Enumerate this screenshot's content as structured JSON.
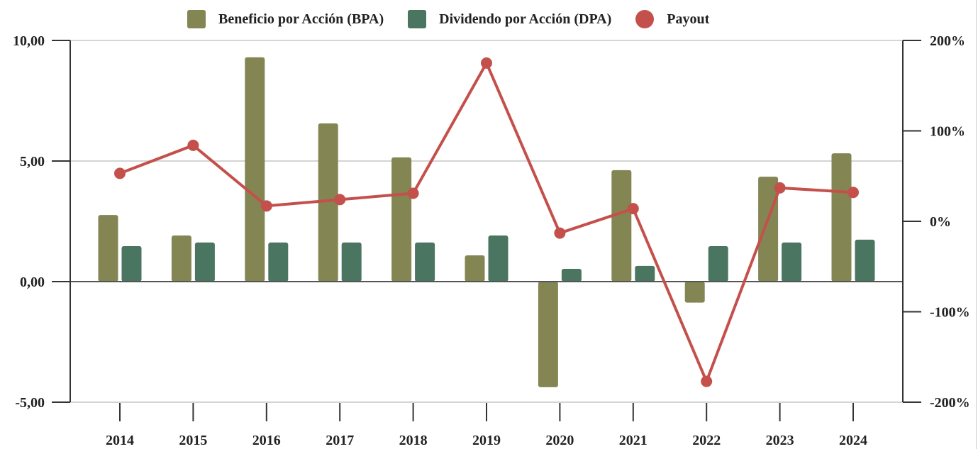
{
  "chart_data": {
    "type": "bar",
    "title": "",
    "xlabel": "",
    "ylabel": "",
    "y2label": "",
    "categories": [
      "2014",
      "2015",
      "2016",
      "2017",
      "2018",
      "2019",
      "2020",
      "2021",
      "2022",
      "2023",
      "2024"
    ],
    "series": [
      {
        "name": "Beneficio por Acción (BPA)",
        "type": "bar",
        "axis": "left",
        "color": "#838653",
        "values": [
          2.76,
          1.91,
          9.3,
          6.56,
          5.15,
          1.09,
          -4.38,
          4.62,
          -0.87,
          4.35,
          5.32
        ]
      },
      {
        "name": "Dividendo por Acción (DPA)",
        "type": "bar",
        "axis": "left",
        "color": "#4a7560",
        "values": [
          1.47,
          1.62,
          1.62,
          1.62,
          1.62,
          1.91,
          0.53,
          0.65,
          1.47,
          1.62,
          1.74
        ]
      },
      {
        "name": "Payout",
        "type": "line",
        "axis": "right",
        "unit": "%",
        "color": "#c4504c",
        "values": [
          53,
          84,
          17,
          24,
          31,
          175,
          -13,
          14,
          -177,
          37,
          32
        ]
      }
    ],
    "ylim": [
      -5,
      10
    ],
    "yticks": [
      10,
      5,
      0,
      -5
    ],
    "ytick_labels": [
      "10,00",
      "5,00",
      "0,00",
      "-5,00"
    ],
    "y2lim": [
      -200,
      200
    ],
    "y2ticks": [
      200,
      100,
      0,
      -100,
      -200
    ],
    "y2tick_labels": [
      "200%",
      "100%",
      "0%",
      "-100%",
      "-200%"
    ],
    "grid": true,
    "legend": "top-center"
  }
}
